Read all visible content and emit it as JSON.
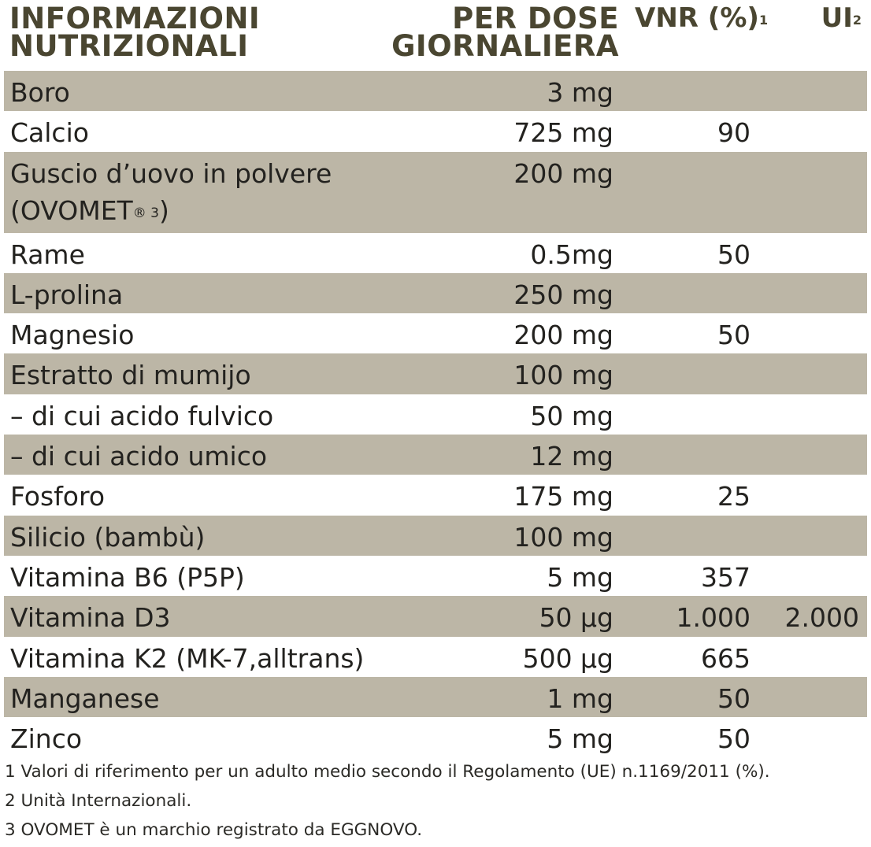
{
  "header": {
    "col1_line1": "INFORMAZIONI",
    "col1_line2": "NUTRIZIONALI",
    "col2_line1": "PER DOSE",
    "col2_line2": "GIORNALIERA",
    "col3_label": "VNR (%)",
    "col3_sup": "1",
    "col4_label": "UI",
    "col4_sup": "2"
  },
  "rows": [
    {
      "name": "Boro",
      "dose": "3 mg",
      "vnr": "",
      "ui": ""
    },
    {
      "name": "Calcio",
      "dose": "725 mg",
      "vnr": "90",
      "ui": ""
    },
    {
      "name_line1": "Guscio d’uovo in polvere",
      "name_line2": "(OVOMET",
      "name_sup": "® 3",
      "name_close": ")",
      "dose": "200 mg",
      "vnr": "",
      "ui": ""
    },
    {
      "name": "Rame",
      "dose": "0.5mg",
      "vnr": "50",
      "ui": ""
    },
    {
      "name": "L-prolina",
      "dose": "250 mg",
      "vnr": "",
      "ui": ""
    },
    {
      "name": "Magnesio",
      "dose": "200 mg",
      "vnr": "50",
      "ui": ""
    },
    {
      "name": "Estratto di mumijo",
      "dose": "100 mg",
      "vnr": "",
      "ui": ""
    },
    {
      "name": "– di cui acido fulvico",
      "dose": "50 mg",
      "vnr": "",
      "ui": ""
    },
    {
      "name": "– di cui acido umico",
      "dose": "12 mg",
      "vnr": "",
      "ui": ""
    },
    {
      "name": "Fosforo",
      "dose": "175 mg",
      "vnr": "25",
      "ui": ""
    },
    {
      "name": "Silicio (bambù)",
      "dose": "100 mg",
      "vnr": "",
      "ui": ""
    },
    {
      "name": "Vitamina B6 (P5P)",
      "dose": "5 mg",
      "vnr": "357",
      "ui": ""
    },
    {
      "name": "Vitamina D3",
      "dose": "50 µg",
      "vnr": "1.000",
      "ui": "2.000"
    },
    {
      "name": "Vitamina K2 (MK-7,alltrans)",
      "dose": "500 µg",
      "vnr": "665",
      "ui": ""
    },
    {
      "name": "Manganese",
      "dose": "1 mg",
      "vnr": "50",
      "ui": ""
    },
    {
      "name": "Zinco",
      "dose": "5 mg",
      "vnr": "50",
      "ui": ""
    }
  ],
  "footnotes": [
    "1 Valori di riferimento per un adulto medio secondo il Regolamento (UE) n.1169/2011  (%).",
    "2 Unità Internazionali.",
    "3 OVOMET è un marchio registrato da EGGNOVO."
  ],
  "colors": {
    "shade": "#bcb6a6",
    "header_text": "#4a4631",
    "body_text": "#23221f"
  }
}
